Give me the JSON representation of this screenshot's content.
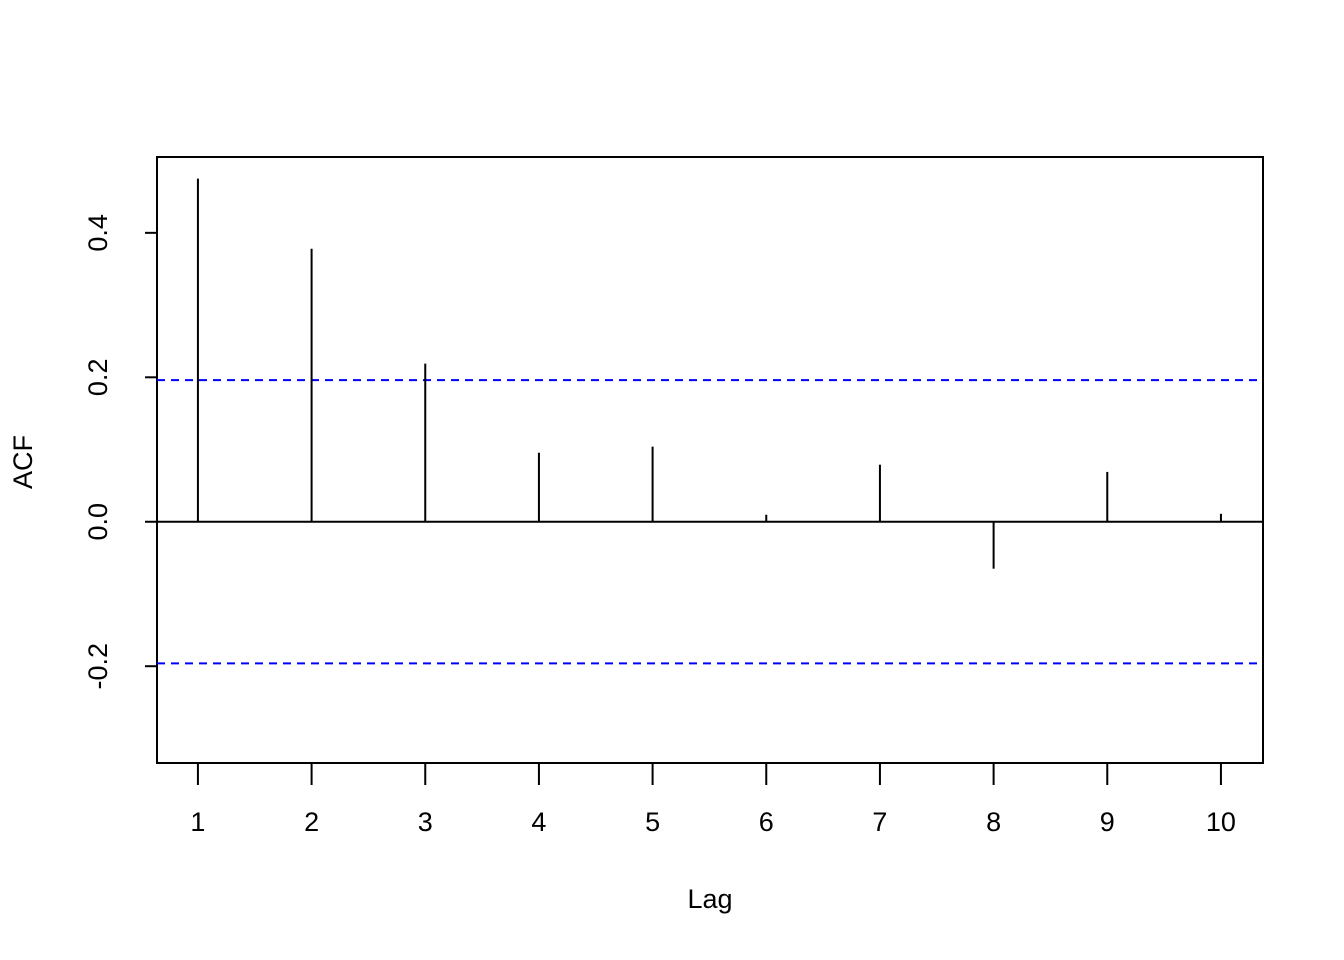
{
  "chart_data": {
    "type": "stem",
    "x_label": "Lag",
    "y_label": "ACF",
    "x": [
      1,
      2,
      3,
      4,
      5,
      6,
      7,
      8,
      9,
      10
    ],
    "values": [
      0.475,
      0.378,
      0.219,
      0.0955,
      0.104,
      0.0097,
      0.079,
      -0.065,
      0.069,
      0.011
    ],
    "color": "#000000",
    "confidence_bounds": {
      "values": [
        0.196,
        -0.196
      ],
      "color": "#0000ff"
    },
    "xlim": [
      0.64,
      10.37
    ],
    "xticks": [
      1,
      2,
      3,
      4,
      5,
      6,
      7,
      8,
      9,
      10
    ],
    "ylim": [
      -0.334,
      0.505
    ],
    "yticks": [
      -0.2,
      {
        "value": 0,
        "label": "0.0"
      },
      0.2,
      0.4
    ]
  }
}
